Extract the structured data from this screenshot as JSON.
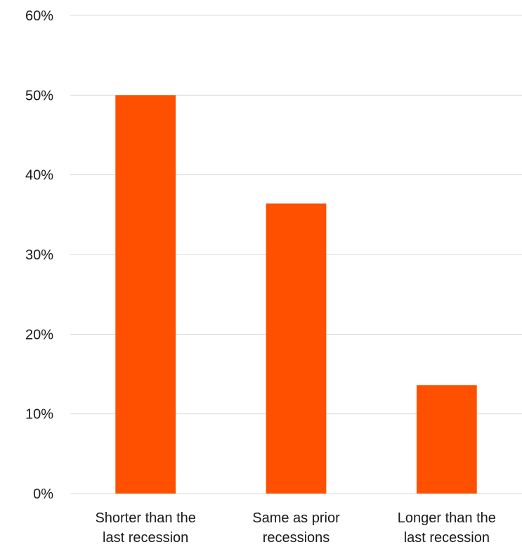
{
  "chart_data": {
    "type": "bar",
    "categories": [
      [
        "Shorter than the",
        "last recession"
      ],
      [
        "Same as prior",
        "recessions"
      ],
      [
        "Longer than the",
        "last recession"
      ]
    ],
    "values": [
      50,
      36.4,
      13.6
    ],
    "ylim": [
      0,
      60
    ],
    "y_ticks": [
      0,
      10,
      20,
      30,
      40,
      50,
      60
    ],
    "y_tick_labels": [
      "0%",
      "10%",
      "20%",
      "30%",
      "40%",
      "50%",
      "60%"
    ],
    "bar_color": "#ff5000",
    "grid": true,
    "legend": "none",
    "title": "",
    "xlabel": "",
    "ylabel": ""
  }
}
